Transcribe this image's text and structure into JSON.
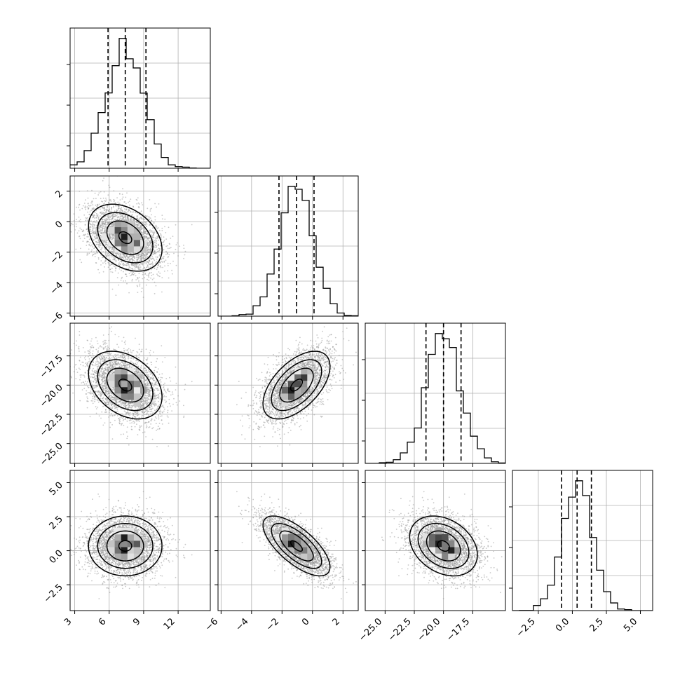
{
  "chart_data": {
    "type": "corner",
    "grid": true,
    "colors": {
      "hist": "#000000",
      "contour": "#000000",
      "scatter": "#9a9a9a",
      "quantile": "#000000",
      "grid": "#b0b0b0"
    },
    "params": [
      {
        "range": [
          2.6,
          14.8
        ],
        "ticks": [
          3,
          6,
          9,
          12
        ],
        "tick_labels": [
          "3",
          "6",
          "9",
          "12"
        ],
        "quantiles": [
          5.9,
          7.4,
          9.2
        ],
        "mean": 7.4,
        "sd": 1.6
      },
      {
        "range": [
          -6.2,
          3.0
        ],
        "ticks": [
          -6,
          -4,
          -2,
          0,
          2
        ],
        "tick_labels": [
          "−6",
          "−4",
          "−2",
          "0",
          "2"
        ],
        "quantiles": [
          -2.2,
          -1.05,
          0.1
        ],
        "mean": -1.05,
        "sd": 1.1
      },
      {
        "range": [
          -26.7,
          -14.7
        ],
        "ticks": [
          -25.0,
          -22.5,
          -20.0,
          -17.5
        ],
        "tick_labels": [
          "−25.0",
          "−22.5",
          "−20.0",
          "−17.5"
        ],
        "quantiles": [
          -21.5,
          -20.0,
          -18.5
        ],
        "mean": -20.0,
        "sd": 1.45
      },
      {
        "range": [
          -4.4,
          5.9
        ],
        "ticks": [
          -2.5,
          0.0,
          2.5,
          5.0
        ],
        "tick_labels": [
          "−2.5",
          "0.0",
          "2.5",
          "5.0"
        ],
        "quantiles": [
          -0.8,
          0.35,
          1.4
        ],
        "mean": 0.35,
        "sd": 1.1
      }
    ],
    "correlations": [
      [
        1.0,
        -0.35,
        -0.35,
        0.0
      ],
      [
        -0.35,
        1.0,
        0.55,
        -0.7
      ],
      [
        -0.35,
        0.55,
        1.0,
        -0.3
      ],
      [
        0.0,
        -0.7,
        -0.3,
        1.0
      ]
    ]
  }
}
